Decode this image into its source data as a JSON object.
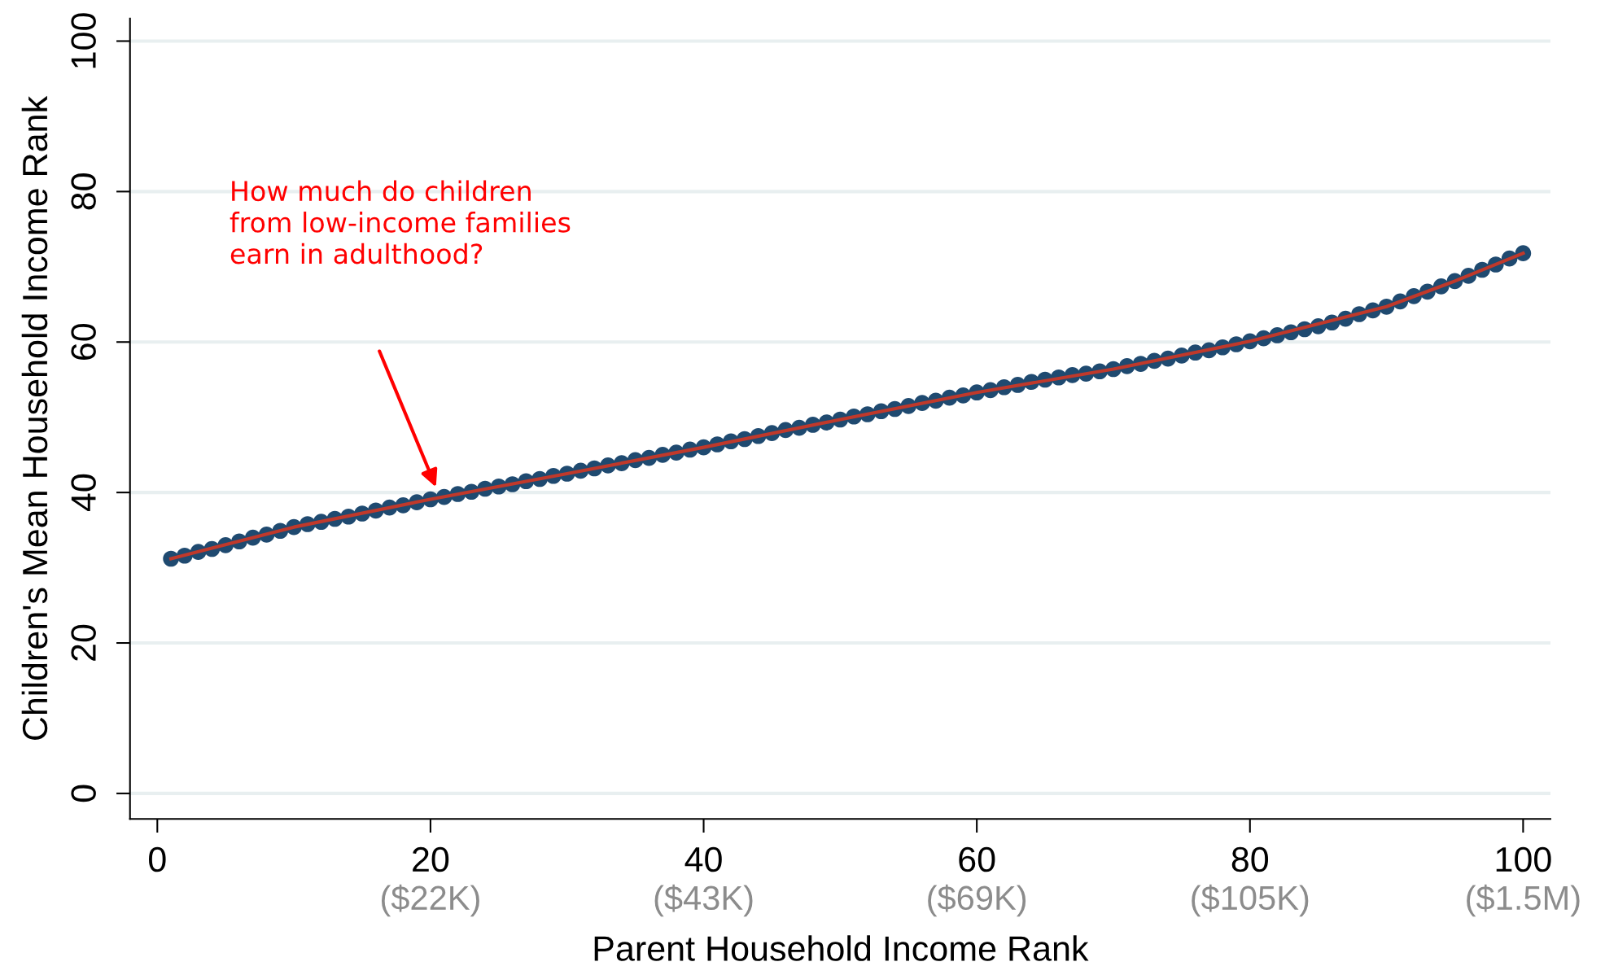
{
  "chart_data": {
    "type": "scatter",
    "xlabel": "Parent Household Income Rank",
    "ylabel": "Children's Mean Household Income Rank",
    "xlim": [
      -2,
      102
    ],
    "ylim": [
      -3.4,
      103
    ],
    "xticks": [
      0,
      20,
      40,
      60,
      80,
      100
    ],
    "yticks": [
      0,
      20,
      40,
      60,
      80,
      100
    ],
    "grid": "y",
    "marker": "circle",
    "annotations": [
      "How much do children\nfrom low-income families\nearn in adulthood?",
      "($22K)",
      "($43K)",
      "($69K)",
      "($105K)",
      "($1.5M)"
    ],
    "series": [
      {
        "color": "#1f4a70",
        "x": [
          1,
          2,
          3,
          4,
          5,
          6,
          7,
          8,
          9,
          10,
          11,
          12,
          13,
          14,
          15,
          16,
          17,
          18,
          19,
          20,
          21,
          22,
          23,
          24,
          25,
          26,
          27,
          28,
          29,
          30,
          31,
          32,
          33,
          34,
          35,
          36,
          37,
          38,
          39,
          40,
          41,
          42,
          43,
          44,
          45,
          46,
          47,
          48,
          49,
          50,
          51,
          52,
          53,
          54,
          55,
          56,
          57,
          58,
          59,
          60,
          61,
          62,
          63,
          64,
          65,
          66,
          67,
          68,
          69,
          70,
          71,
          72,
          73,
          74,
          75,
          76,
          77,
          78,
          79,
          80,
          81,
          82,
          83,
          84,
          85,
          86,
          87,
          88,
          89,
          90,
          91,
          92,
          93,
          94,
          95,
          96,
          97,
          98,
          99,
          100
        ],
        "values": [
          31.2,
          31.6,
          32.1,
          32.5,
          33.0,
          33.5,
          34.0,
          34.4,
          34.9,
          35.4,
          35.8,
          36.1,
          36.5,
          36.8,
          37.2,
          37.6,
          38.0,
          38.3,
          38.7,
          39.1,
          39.4,
          39.8,
          40.1,
          40.5,
          40.8,
          41.1,
          41.5,
          41.8,
          42.2,
          42.5,
          42.9,
          43.2,
          43.6,
          43.9,
          44.3,
          44.6,
          45.0,
          45.3,
          45.7,
          46.0,
          46.4,
          46.8,
          47.1,
          47.5,
          47.9,
          48.3,
          48.6,
          49.0,
          49.3,
          49.7,
          50.1,
          50.4,
          50.8,
          51.1,
          51.5,
          51.9,
          52.2,
          52.6,
          52.9,
          53.3,
          53.6,
          54.0,
          54.3,
          54.7,
          55.0,
          55.3,
          55.6,
          55.8,
          56.1,
          56.4,
          56.8,
          57.1,
          57.5,
          57.8,
          58.2,
          58.6,
          58.9,
          59.3,
          59.7,
          60.1,
          60.5,
          60.9,
          61.3,
          61.7,
          62.1,
          62.6,
          63.1,
          63.7,
          64.2,
          64.7,
          65.4,
          66.1,
          66.7,
          67.4,
          68.1,
          68.8,
          69.6,
          70.3,
          71.1,
          71.8
        ]
      },
      {
        "type": "line",
        "marker": "none",
        "color": "#c0392b",
        "x": [
          1,
          10,
          20,
          30,
          40,
          50,
          60,
          70,
          80,
          90,
          95,
          100
        ],
        "values": [
          31.2,
          35.4,
          39.1,
          42.5,
          46.0,
          49.7,
          53.3,
          56.4,
          60.1,
          64.7,
          68.1,
          71.8
        ]
      }
    ]
  }
}
